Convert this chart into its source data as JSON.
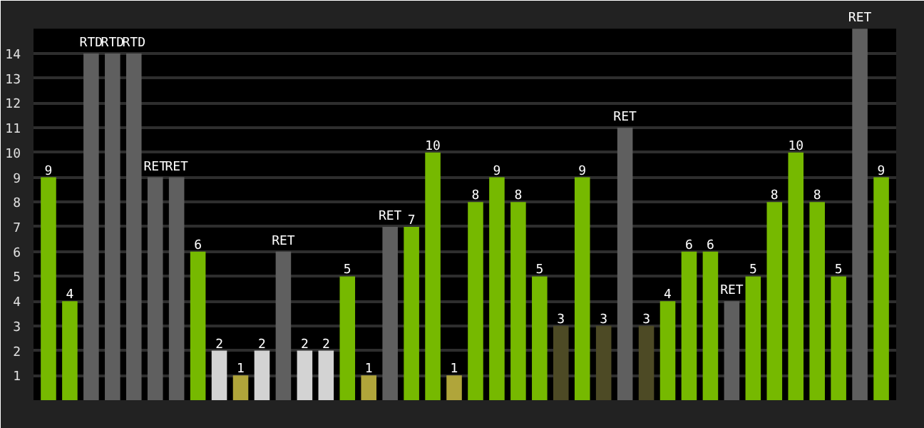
{
  "chart_data": {
    "type": "bar",
    "categories": [
      null,
      null,
      null,
      null,
      null,
      null,
      null,
      null,
      null,
      null,
      null,
      null,
      null,
      null,
      null,
      null,
      null,
      null,
      null,
      null,
      null,
      null,
      null,
      null,
      null,
      null,
      null,
      null,
      null,
      null,
      null,
      null,
      null,
      null,
      null,
      null,
      null,
      null,
      null,
      null
    ],
    "values": [
      9,
      4,
      14,
      14,
      14,
      9,
      9,
      6,
      2,
      1,
      2,
      6,
      2,
      2,
      5,
      1,
      7,
      7,
      10,
      1,
      8,
      9,
      8,
      5,
      3,
      9,
      3,
      11,
      3,
      4,
      6,
      6,
      4,
      5,
      8,
      10,
      8,
      5,
      15,
      9
    ],
    "colors": [
      "#76b900",
      "#76b900",
      "#5f5f5f",
      "#5f5f5f",
      "#5f5f5f",
      "#5f5f5f",
      "#5f5f5f",
      "#76b900",
      "#d3d3d3",
      "#b0a53a",
      "#d3d3d3",
      "#5f5f5f",
      "#d3d3d3",
      "#d3d3d3",
      "#76b900",
      "#b0a53a",
      "#5f5f5f",
      "#76b900",
      "#76b900",
      "#b0a53a",
      "#76b900",
      "#76b900",
      "#76b900",
      "#76b900",
      "#4d4a25",
      "#76b900",
      "#4d4a25",
      "#5f5f5f",
      "#4d4a25",
      "#76b900",
      "#76b900",
      "#76b900",
      "#5f5f5f",
      "#76b900",
      "#76b900",
      "#76b900",
      "#76b900",
      "#76b900",
      "#5f5f5f",
      "#76b900"
    ],
    "value_labels": [
      "9",
      "4",
      "RTD",
      "RTD",
      "RTD",
      "RET",
      "RET",
      "6",
      "2",
      "1",
      "2",
      "RET",
      "2",
      "2",
      "5",
      "1",
      "RET",
      "7",
      "10",
      "1",
      "8",
      "9",
      "8",
      "5",
      "3",
      "9",
      "3",
      "RET",
      "3",
      "4",
      "6",
      "6",
      "RET",
      "5",
      "8",
      "10",
      "8",
      "5",
      "RET",
      "9"
    ],
    "ylim": [
      0,
      15
    ],
    "yticks": [
      1,
      2,
      3,
      4,
      5,
      6,
      7,
      8,
      9,
      10,
      11,
      12,
      13,
      14
    ],
    "grid": "y",
    "tick_labels": "y"
  }
}
